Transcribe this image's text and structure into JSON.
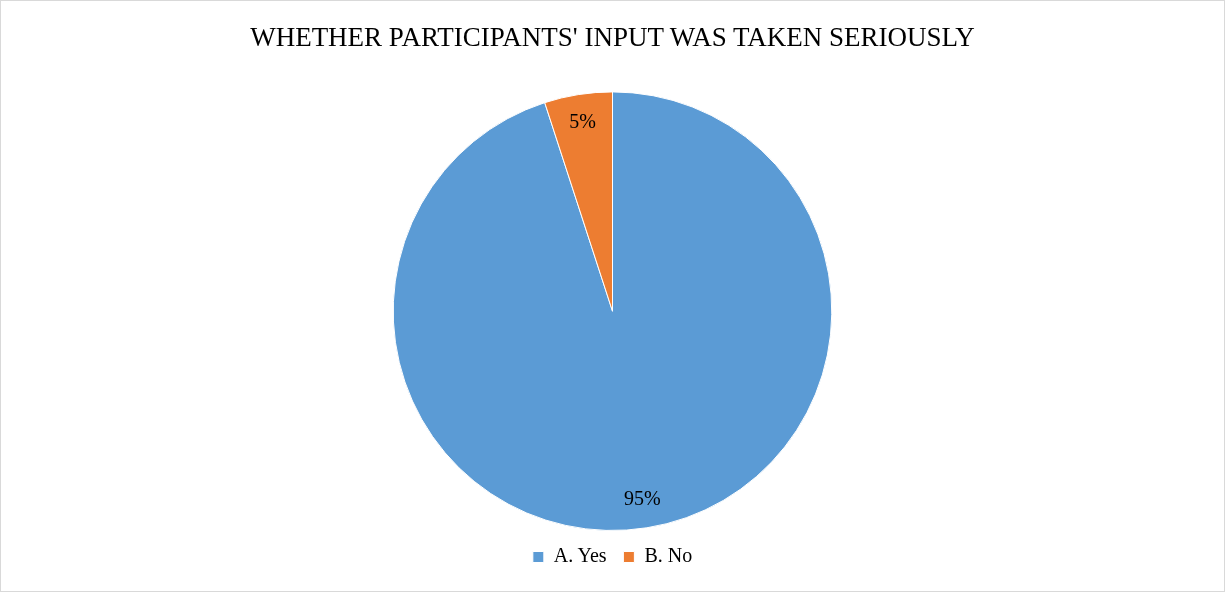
{
  "chart_data": {
    "type": "pie",
    "title": "WHETHER PARTICIPANTS' INPUT WAS TAKEN SERIOUSLY",
    "categories": [
      "A. Yes",
      "B. No"
    ],
    "values": [
      95,
      5
    ],
    "colors": [
      "#5b9bd5",
      "#ed7d31"
    ],
    "value_labels": [
      "95%",
      "5%"
    ],
    "legend": "bottom"
  }
}
